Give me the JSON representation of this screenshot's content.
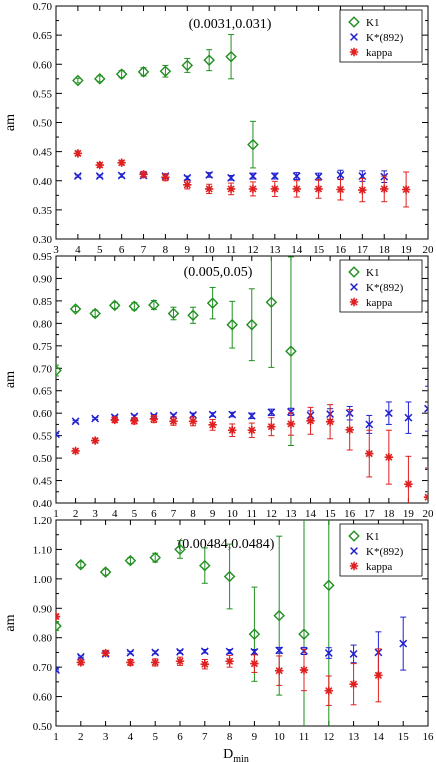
{
  "chart_data": [
    {
      "type": "scatter",
      "annotation": "(0.0031,0.031)",
      "ylabel": "am",
      "xlabel": "",
      "xlim": [
        3,
        20
      ],
      "ylim": [
        0.3,
        0.7
      ],
      "xticks": [
        3,
        4,
        5,
        6,
        7,
        8,
        9,
        10,
        11,
        12,
        13,
        14,
        15,
        16,
        17,
        18,
        19,
        20
      ],
      "yticks": [
        "0.30",
        "0.35",
        "0.40",
        "0.45",
        "0.50",
        "0.55",
        "0.60",
        "0.65",
        "0.70"
      ],
      "legend_position": "top-right",
      "series": [
        {
          "name": "K1",
          "marker": "diamond",
          "color": "#1f8f1f",
          "points": [
            [
              4,
              0.572,
              0.004
            ],
            [
              5,
              0.575,
              0.005
            ],
            [
              6,
              0.583,
              0.006
            ],
            [
              7,
              0.587,
              0.007
            ],
            [
              8,
              0.588,
              0.01
            ],
            [
              9,
              0.598,
              0.012
            ],
            [
              10,
              0.607,
              0.018
            ],
            [
              11,
              0.613,
              0.038
            ],
            [
              12,
              0.462,
              0.04
            ]
          ]
        },
        {
          "name": "K*(892)",
          "marker": "x",
          "color": "#1f1fd0",
          "points": [
            [
              4,
              0.408,
              0.002
            ],
            [
              5,
              0.408,
              0.002
            ],
            [
              6,
              0.409,
              0.003
            ],
            [
              7,
              0.409,
              0.003
            ],
            [
              8,
              0.408,
              0.003
            ],
            [
              9,
              0.405,
              0.003
            ],
            [
              10,
              0.41,
              0.004
            ],
            [
              11,
              0.405,
              0.004
            ],
            [
              12,
              0.408,
              0.005
            ],
            [
              13,
              0.408,
              0.005
            ],
            [
              14,
              0.408,
              0.006
            ],
            [
              15,
              0.407,
              0.006
            ],
            [
              16,
              0.41,
              0.008
            ],
            [
              17,
              0.408,
              0.009
            ],
            [
              18,
              0.407,
              0.01
            ]
          ]
        },
        {
          "name": "kappa",
          "marker": "star",
          "color": "#e02020",
          "points": [
            [
              4,
              0.447,
              0.004
            ],
            [
              5,
              0.427,
              0.004
            ],
            [
              6,
              0.431,
              0.004
            ],
            [
              7,
              0.411,
              0.005
            ],
            [
              8,
              0.406,
              0.006
            ],
            [
              9,
              0.393,
              0.007
            ],
            [
              10,
              0.386,
              0.008
            ],
            [
              11,
              0.386,
              0.01
            ],
            [
              12,
              0.386,
              0.012
            ],
            [
              13,
              0.386,
              0.013
            ],
            [
              14,
              0.386,
              0.014
            ],
            [
              15,
              0.386,
              0.016
            ],
            [
              16,
              0.385,
              0.018
            ],
            [
              17,
              0.384,
              0.02
            ],
            [
              18,
              0.386,
              0.022
            ],
            [
              19,
              0.385,
              0.03
            ]
          ]
        }
      ]
    },
    {
      "type": "scatter",
      "annotation": "(0.005,0.05)",
      "ylabel": "am",
      "xlabel": "",
      "xlim": [
        1,
        20
      ],
      "ylim": [
        0.4,
        0.95
      ],
      "xticks": [
        1,
        2,
        3,
        4,
        5,
        6,
        7,
        8,
        9,
        10,
        11,
        12,
        13,
        14,
        15,
        16,
        17,
        18,
        19,
        20
      ],
      "yticks": [
        "0.40",
        "0.45",
        "0.50",
        "0.55",
        "0.60",
        "0.65",
        "0.70",
        "0.75",
        "0.80",
        "0.85",
        "0.90",
        "0.95"
      ],
      "legend_position": "top-right",
      "series": [
        {
          "name": "K1",
          "marker": "diamond",
          "color": "#1f8f1f",
          "points": [
            [
              1,
              0.695,
              0.012
            ],
            [
              2,
              0.832,
              0.006
            ],
            [
              3,
              0.822,
              0.007
            ],
            [
              4,
              0.84,
              0.007
            ],
            [
              5,
              0.838,
              0.008
            ],
            [
              6,
              0.841,
              0.01
            ],
            [
              7,
              0.822,
              0.014
            ],
            [
              8,
              0.818,
              0.018
            ],
            [
              9,
              0.845,
              0.035
            ],
            [
              10,
              0.797,
              0.052
            ],
            [
              11,
              0.797,
              0.08
            ],
            [
              12,
              0.847,
              0.145
            ],
            [
              13,
              0.738,
              0.21
            ]
          ]
        },
        {
          "name": "K*(892)",
          "marker": "x",
          "color": "#1f1fd0",
          "points": [
            [
              1,
              0.553,
              0.002
            ],
            [
              2,
              0.582,
              0.002
            ],
            [
              3,
              0.588,
              0.002
            ],
            [
              4,
              0.591,
              0.003
            ],
            [
              5,
              0.593,
              0.003
            ],
            [
              6,
              0.594,
              0.003
            ],
            [
              7,
              0.595,
              0.003
            ],
            [
              8,
              0.596,
              0.004
            ],
            [
              9,
              0.597,
              0.004
            ],
            [
              10,
              0.597,
              0.005
            ],
            [
              11,
              0.594,
              0.006
            ],
            [
              12,
              0.602,
              0.007
            ],
            [
              13,
              0.603,
              0.008
            ],
            [
              14,
              0.595,
              0.01
            ],
            [
              15,
              0.598,
              0.012
            ],
            [
              16,
              0.6,
              0.015
            ],
            [
              17,
              0.575,
              0.02
            ],
            [
              18,
              0.6,
              0.025
            ],
            [
              19,
              0.59,
              0.035
            ],
            [
              20,
              0.61,
              0.05
            ]
          ]
        },
        {
          "name": "kappa",
          "marker": "star",
          "color": "#e02020",
          "points": [
            [
              2,
              0.516,
              0.004
            ],
            [
              3,
              0.539,
              0.005
            ],
            [
              4,
              0.585,
              0.006
            ],
            [
              5,
              0.583,
              0.007
            ],
            [
              6,
              0.587,
              0.008
            ],
            [
              7,
              0.582,
              0.009
            ],
            [
              8,
              0.582,
              0.01
            ],
            [
              9,
              0.574,
              0.012
            ],
            [
              10,
              0.562,
              0.014
            ],
            [
              11,
              0.562,
              0.016
            ],
            [
              12,
              0.57,
              0.02
            ],
            [
              13,
              0.576,
              0.025
            ],
            [
              14,
              0.583,
              0.03
            ],
            [
              15,
              0.581,
              0.038
            ],
            [
              16,
              0.563,
              0.045
            ],
            [
              17,
              0.51,
              0.052
            ],
            [
              18,
              0.502,
              0.06
            ],
            [
              19,
              0.442,
              0.062
            ],
            [
              20,
              0.413,
              0.065
            ]
          ]
        }
      ]
    },
    {
      "type": "scatter",
      "annotation": "(0.00484,0.0484)",
      "ylabel": "am",
      "xlabel": "D",
      "xlabel_sub": "min",
      "xlim": [
        1,
        16
      ],
      "ylim": [
        0.5,
        1.2
      ],
      "xticks": [
        1,
        2,
        3,
        4,
        5,
        6,
        7,
        8,
        9,
        10,
        11,
        12,
        13,
        14,
        15,
        16
      ],
      "yticks": [
        "0.50",
        "0.60",
        "0.70",
        "0.80",
        "0.90",
        "1.00",
        "1.10",
        "1.20"
      ],
      "legend_position": "top-right",
      "series": [
        {
          "name": "K1",
          "marker": "diamond",
          "color": "#1f8f1f",
          "points": [
            [
              1,
              0.84,
              0.015
            ],
            [
              2,
              1.048,
              0.01
            ],
            [
              3,
              1.023,
              0.01
            ],
            [
              4,
              1.062,
              0.01
            ],
            [
              5,
              1.072,
              0.015
            ],
            [
              6,
              1.1,
              0.03
            ],
            [
              7,
              1.045,
              0.06
            ],
            [
              8,
              1.008,
              0.11
            ],
            [
              9,
              0.812,
              0.16
            ],
            [
              10,
              0.875,
              0.27
            ],
            [
              11,
              0.812,
              0.5
            ],
            [
              12,
              0.978,
              0.6
            ]
          ]
        },
        {
          "name": "K*(892)",
          "marker": "x",
          "color": "#1f1fd0",
          "points": [
            [
              1,
              0.69,
              0.003
            ],
            [
              2,
              0.735,
              0.003
            ],
            [
              3,
              0.745,
              0.004
            ],
            [
              4,
              0.749,
              0.004
            ],
            [
              5,
              0.75,
              0.005
            ],
            [
              6,
              0.752,
              0.005
            ],
            [
              7,
              0.754,
              0.006
            ],
            [
              8,
              0.753,
              0.007
            ],
            [
              9,
              0.752,
              0.008
            ],
            [
              10,
              0.757,
              0.01
            ],
            [
              11,
              0.755,
              0.012
            ],
            [
              12,
              0.748,
              0.018
            ],
            [
              13,
              0.745,
              0.03
            ],
            [
              14,
              0.75,
              0.07
            ],
            [
              15,
              0.78,
              0.09
            ]
          ]
        },
        {
          "name": "kappa",
          "marker": "star",
          "color": "#e02020",
          "points": [
            [
              1,
              0.872,
              0.008
            ],
            [
              2,
              0.716,
              0.008
            ],
            [
              3,
              0.748,
              0.008
            ],
            [
              4,
              0.716,
              0.01
            ],
            [
              5,
              0.716,
              0.012
            ],
            [
              6,
              0.72,
              0.014
            ],
            [
              7,
              0.71,
              0.016
            ],
            [
              8,
              0.72,
              0.02
            ],
            [
              9,
              0.712,
              0.03
            ],
            [
              10,
              0.688,
              0.05
            ],
            [
              11,
              0.69,
              0.07
            ],
            [
              12,
              0.62,
              0.05
            ],
            [
              13,
              0.642,
              0.07
            ],
            [
              14,
              0.672,
              0.09
            ]
          ]
        }
      ]
    }
  ]
}
